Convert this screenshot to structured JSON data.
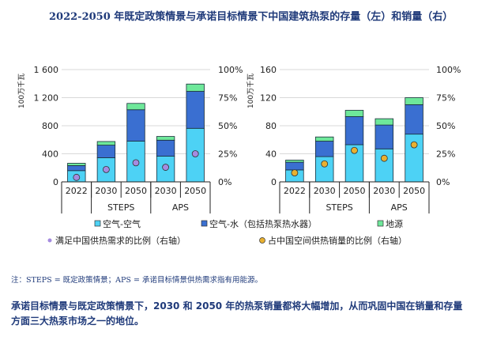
{
  "title": "2022-2050 年既定政策情景与承诺目标情景下中国建筑热泵的存量（左）和销量（右）",
  "note": "注：STEPS = 既定政策情景；APS = 承诺目标情景供热需求指有用能源。",
  "summary": "承诺目标情景与既定政策情景下，2030 和 2050 年的热泵销量都将大幅增加，从而巩固中国在销量和存量方面三大热泵市场之一的地位。",
  "colors": {
    "air_air": "#4dd2f5",
    "air_water": "#3a6fd1",
    "ground": "#6ee89a",
    "share_demand": "#a58be0",
    "share_sales": "#e8b030"
  },
  "legend": {
    "air_air": "空气-空气",
    "air_water": "空气-水（包括热泵热水器）",
    "ground": "地源",
    "share_demand": "满足中国供热需求的比例（右轴）",
    "share_sales": "占中国空间供热销量的比例（右轴）"
  },
  "chart_data": [
    {
      "type": "bar",
      "stacked": true,
      "title": "存量",
      "ylabel": "100万千瓦",
      "ylim": [
        0,
        1600
      ],
      "yticks": [
        "0",
        "400",
        "800",
        "1 200",
        "1 600"
      ],
      "y2lim": [
        0,
        100
      ],
      "y2ticks": [
        "0%",
        "25%",
        "50%",
        "75%",
        "100%"
      ],
      "categories": [
        "2022",
        "2030",
        "2050",
        "2030",
        "2050"
      ],
      "groups": [
        {
          "label": "",
          "span": 1
        },
        {
          "label": "STEPS",
          "span": 2
        },
        {
          "label": "APS",
          "span": 2
        }
      ],
      "series": [
        {
          "name": "空气-空气",
          "values": [
            160,
            344,
            580,
            366,
            763
          ]
        },
        {
          "name": "空气-水（包括热泵热水器）",
          "values": [
            72,
            179,
            448,
            228,
            527
          ]
        },
        {
          "name": "地源",
          "values": [
            33,
            52,
            90,
            53,
            104
          ]
        }
      ],
      "points": {
        "name": "满足中国供热需求的比例（右轴）",
        "values": [
          4,
          11,
          17,
          13,
          25
        ]
      }
    },
    {
      "type": "bar",
      "stacked": true,
      "title": "销量",
      "ylabel": "100万千瓦",
      "ylim": [
        0,
        160
      ],
      "yticks": [
        "0",
        "40",
        "80",
        "120",
        "160"
      ],
      "y2lim": [
        0,
        100
      ],
      "y2ticks": [
        "0%",
        "25%",
        "50%",
        "75%",
        "100%"
      ],
      "categories": [
        "2022",
        "2030",
        "2050",
        "2030",
        "2050"
      ],
      "groups": [
        {
          "label": "",
          "span": 1
        },
        {
          "label": "STEPS",
          "span": 2
        },
        {
          "label": "APS",
          "span": 2
        }
      ],
      "series": [
        {
          "name": "空气-空气",
          "values": [
            17,
            36,
            53,
            47,
            68
          ]
        },
        {
          "name": "空气-水（包括热泵热水器）",
          "values": [
            11,
            22,
            40,
            34,
            42
          ]
        },
        {
          "name": "地源",
          "values": [
            3,
            6,
            9,
            9,
            10
          ]
        }
      ],
      "points": {
        "name": "占中国空间供热销量的比例（右轴）",
        "values": [
          8,
          16,
          28,
          21,
          33
        ]
      }
    }
  ]
}
